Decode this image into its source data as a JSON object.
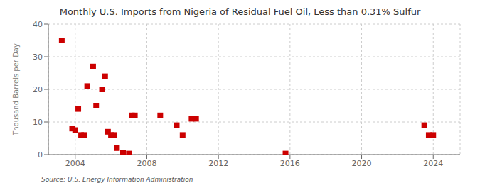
{
  "chart_data": {
    "type": "scatter",
    "title": "Monthly U.S. Imports from Nigeria of Residual Fuel Oil, Less than 0.31% Sulfur",
    "ylabel": "Thousand Barrels per Day",
    "source": "Source: U.S. Energy Information Administration",
    "color": "#cc0000",
    "marker": "square",
    "grid": true,
    "xlim": [
      2002.5,
      2025.5
    ],
    "ylim": [
      0,
      40
    ],
    "xticks": [
      2004,
      2008,
      2012,
      2016,
      2020,
      2024
    ],
    "yticks": [
      0,
      10,
      20,
      30,
      40
    ],
    "x": [
      2003.25,
      2003.83,
      2004.0,
      2004.17,
      2004.33,
      2004.5,
      2004.67,
      2005.0,
      2005.17,
      2005.5,
      2005.67,
      2005.83,
      2006.0,
      2006.17,
      2006.33,
      2006.67,
      2007.0,
      2007.17,
      2007.33,
      2008.75,
      2009.67,
      2010.0,
      2010.5,
      2010.75,
      2015.75,
      2023.5,
      2023.75,
      2024.0
    ],
    "values": [
      35,
      8,
      7.5,
      14,
      6,
      6,
      21,
      27,
      15,
      20,
      24,
      7,
      6,
      6,
      2,
      0.5,
      0.3,
      12,
      12,
      12,
      9,
      6,
      11,
      11,
      0.3,
      9,
      6,
      6
    ]
  }
}
